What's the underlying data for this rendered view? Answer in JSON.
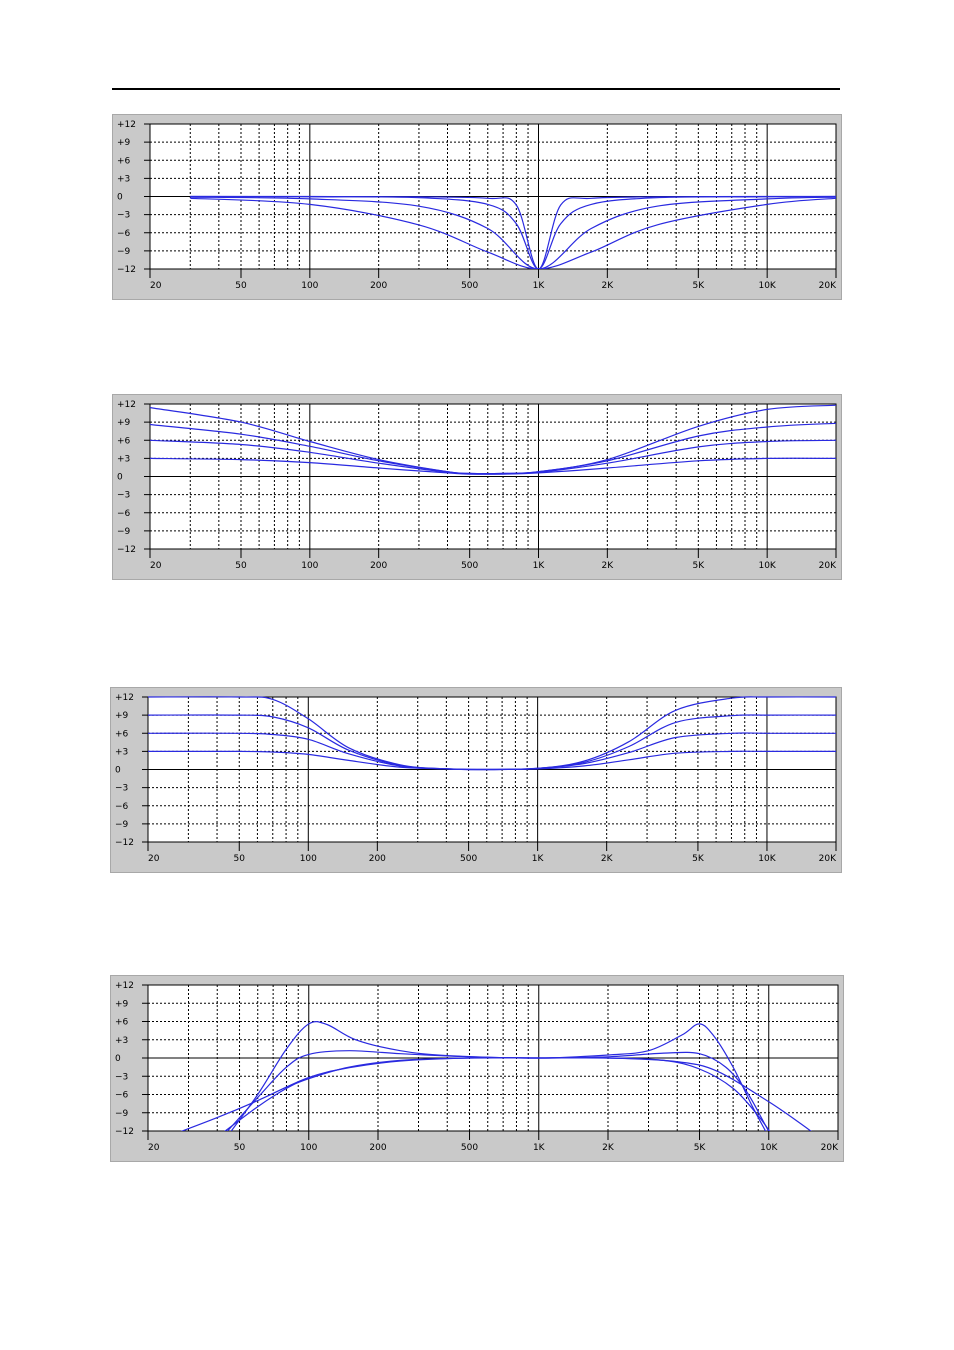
{
  "chart_data": [
    {
      "type": "line",
      "title": "",
      "xlabel": "",
      "ylabel": "",
      "x_scale": "log",
      "xlim": [
        20,
        20000
      ],
      "ylim": [
        -12,
        12
      ],
      "x_ticks": [
        20,
        50,
        100,
        200,
        500,
        1000,
        2000,
        5000,
        10000,
        20000
      ],
      "x_tick_labels": [
        "20",
        "50",
        "100",
        "200",
        "500",
        "1K",
        "2K",
        "5K",
        "10K",
        "20K"
      ],
      "y_ticks": [
        12,
        9,
        6,
        3,
        0,
        -3,
        -6,
        -9,
        -12
      ],
      "y_tick_labels": [
        "+12",
        "+9",
        "+6",
        "+3",
        "0",
        "−3",
        "−6",
        "−9",
        "−12"
      ],
      "grid": true,
      "series": [
        {
          "x": [
            30,
            100,
            300,
            600,
            1000,
            1700,
            3300,
            10000,
            20000
          ],
          "values": [
            -0.1,
            -0.4,
            -1.6,
            -5.3,
            -12,
            -5.3,
            -1.6,
            -0.4,
            -0.1
          ]
        },
        {
          "x": [
            30,
            100,
            300,
            600,
            1000,
            1700,
            3300,
            10000,
            20000
          ],
          "values": [
            -0.3,
            -1.3,
            -4.7,
            -9.2,
            -12,
            -9.2,
            -4.7,
            -1.3,
            -0.3
          ]
        },
        {
          "x": [
            30,
            100,
            300,
            600,
            800,
            1000,
            1250,
            1700,
            3300,
            10000,
            20000
          ],
          "values": [
            0,
            0,
            -0.05,
            -0.3,
            -1.4,
            -12,
            -1.4,
            -0.3,
            -0.05,
            0,
            0
          ]
        },
        {
          "x": [
            30,
            100,
            300,
            600,
            800,
            1000,
            1250,
            1700,
            3300,
            10000,
            20000
          ],
          "values": [
            0,
            -0.05,
            -0.2,
            -1.3,
            -4.5,
            -12,
            -4.5,
            -1.3,
            -0.2,
            -0.05,
            0
          ]
        }
      ]
    },
    {
      "type": "line",
      "title": "",
      "xlabel": "",
      "ylabel": "",
      "x_scale": "log",
      "xlim": [
        20,
        20000
      ],
      "ylim": [
        -12,
        12
      ],
      "x_ticks": [
        20,
        50,
        100,
        200,
        500,
        1000,
        2000,
        5000,
        10000,
        20000
      ],
      "x_tick_labels": [
        "20",
        "50",
        "100",
        "200",
        "500",
        "1K",
        "2K",
        "5K",
        "10K",
        "20K"
      ],
      "y_ticks": [
        12,
        9,
        6,
        3,
        0,
        -3,
        -6,
        -9,
        -12
      ],
      "y_tick_labels": [
        "+12",
        "+9",
        "+6",
        "+3",
        "0",
        "−3",
        "−6",
        "−9",
        "−12"
      ],
      "grid": true,
      "series": [
        {
          "x": [
            20,
            50,
            100,
            200,
            400,
            500,
            700,
            1000,
            2000,
            5000,
            10000,
            20000
          ],
          "values": [
            11.4,
            9.0,
            5.8,
            2.8,
            0.8,
            0.5,
            0.5,
            0.8,
            2.8,
            8.3,
            11.1,
            11.8
          ]
        },
        {
          "x": [
            20,
            50,
            100,
            200,
            400,
            500,
            700,
            1000,
            2000,
            5000,
            10000,
            20000
          ],
          "values": [
            8.6,
            7.0,
            5.0,
            2.6,
            0.8,
            0.5,
            0.5,
            0.8,
            2.6,
            6.7,
            8.2,
            8.8
          ]
        },
        {
          "x": [
            20,
            50,
            100,
            200,
            400,
            500,
            700,
            1000,
            2000,
            5000,
            10000,
            20000
          ],
          "values": [
            6.0,
            5.3,
            4.0,
            2.2,
            0.7,
            0.5,
            0.5,
            0.7,
            2.2,
            4.9,
            5.8,
            6.0
          ]
        },
        {
          "x": [
            20,
            50,
            100,
            200,
            400,
            500,
            700,
            1000,
            2000,
            5000,
            10000,
            20000
          ],
          "values": [
            3.0,
            2.8,
            2.3,
            1.4,
            0.6,
            0.4,
            0.4,
            0.6,
            1.4,
            2.6,
            3.0,
            3.0
          ]
        }
      ]
    },
    {
      "type": "line",
      "title": "",
      "xlabel": "",
      "ylabel": "",
      "x_scale": "log",
      "xlim": [
        20,
        20000
      ],
      "ylim": [
        -12,
        12
      ],
      "x_ticks": [
        20,
        50,
        100,
        200,
        500,
        1000,
        2000,
        5000,
        10000,
        20000
      ],
      "x_tick_labels": [
        "20",
        "50",
        "100",
        "200",
        "500",
        "1K",
        "2K",
        "5K",
        "10K",
        "20K"
      ],
      "y_ticks": [
        12,
        9,
        6,
        3,
        0,
        -3,
        -6,
        -9,
        -12
      ],
      "y_tick_labels": [
        "+12",
        "+9",
        "+6",
        "+3",
        "0",
        "−3",
        "−6",
        "−9",
        "−12"
      ],
      "grid": true,
      "series": [
        {
          "x": [
            20,
            50,
            70,
            100,
            150,
            250,
            400,
            600,
            1000,
            1600,
            2500,
            4000,
            7000,
            10000,
            20000
          ],
          "values": [
            12,
            12,
            11.6,
            8.4,
            3.6,
            0.8,
            0.1,
            0,
            0.2,
            1.4,
            4.6,
            9.8,
            11.8,
            12,
            12
          ]
        },
        {
          "x": [
            20,
            50,
            70,
            100,
            150,
            250,
            400,
            600,
            1000,
            1600,
            2500,
            4000,
            7000,
            10000,
            20000
          ],
          "values": [
            9,
            9,
            8.7,
            6.9,
            3.2,
            0.7,
            0.1,
            0,
            0.2,
            1.2,
            3.8,
            7.8,
            8.9,
            9,
            9
          ]
        },
        {
          "x": [
            20,
            50,
            70,
            100,
            150,
            250,
            400,
            600,
            1000,
            1600,
            2500,
            4000,
            7000,
            10000,
            20000
          ],
          "values": [
            6,
            6,
            5.8,
            5.0,
            2.6,
            0.6,
            0.1,
            0,
            0.2,
            1.0,
            2.8,
            5.3,
            6.0,
            6,
            6
          ]
        },
        {
          "x": [
            20,
            50,
            70,
            100,
            150,
            250,
            400,
            600,
            1000,
            1600,
            2500,
            4000,
            7000,
            10000,
            20000
          ],
          "values": [
            3,
            3,
            2.9,
            2.5,
            1.5,
            0.4,
            0.1,
            0,
            0.1,
            0.6,
            1.6,
            2.7,
            3.0,
            3,
            3
          ]
        }
      ]
    },
    {
      "type": "line",
      "title": "",
      "xlabel": "",
      "ylabel": "",
      "x_scale": "log",
      "xlim": [
        20,
        20000
      ],
      "ylim": [
        -12,
        12
      ],
      "x_ticks": [
        20,
        50,
        100,
        200,
        500,
        1000,
        2000,
        5000,
        10000,
        20000
      ],
      "x_tick_labels": [
        "20",
        "50",
        "100",
        "200",
        "500",
        "1K",
        "2K",
        "5K",
        "10K",
        "20K"
      ],
      "y_ticks": [
        12,
        9,
        6,
        3,
        0,
        -3,
        -6,
        -9,
        -12
      ],
      "y_tick_labels": [
        "+12",
        "+9",
        "+6",
        "+3",
        "0",
        "−3",
        "−6",
        "−9",
        "−12"
      ],
      "grid": true,
      "series": [
        {
          "x": [
            44,
            60,
            80,
            100,
            120,
            160,
            250,
            400,
            1000,
            2000,
            3000,
            4200,
            5000,
            5800,
            7000,
            8500,
            10000
          ],
          "values": [
            -13,
            -6,
            1.5,
            5.6,
            5.5,
            3.0,
            1.2,
            0.4,
            0,
            0.5,
            1.2,
            3.8,
            5.6,
            3.5,
            -1.5,
            -8,
            -13
          ]
        },
        {
          "x": [
            42,
            60,
            80,
            100,
            150,
            250,
            500,
            1000,
            2000,
            3500,
            5000,
            6500,
            8000,
            9500,
            10300
          ],
          "values": [
            -13,
            -6.5,
            -1.5,
            0.6,
            1.2,
            0.7,
            0.2,
            0,
            0.2,
            0.8,
            0.7,
            -1.5,
            -5.5,
            -10.5,
            -13
          ]
        },
        {
          "x": [
            40,
            60,
            80,
            100,
            150,
            250,
            500,
            1000,
            2000,
            3500,
            5000,
            7000,
            9000,
            10500
          ],
          "values": [
            -13,
            -8,
            -5,
            -3.4,
            -1.5,
            -0.4,
            0,
            0,
            0,
            -0.4,
            -1.8,
            -5,
            -9.5,
            -13
          ]
        },
        {
          "x": [
            24,
            40,
            60,
            100,
            150,
            250,
            500,
            1000,
            2000,
            4000,
            6000,
            10000,
            14000,
            16500
          ],
          "values": [
            -13,
            -9.8,
            -7,
            -3.2,
            -1.6,
            -0.5,
            0,
            0,
            0,
            -0.6,
            -2.2,
            -7.2,
            -11,
            -13
          ]
        }
      ]
    }
  ]
}
